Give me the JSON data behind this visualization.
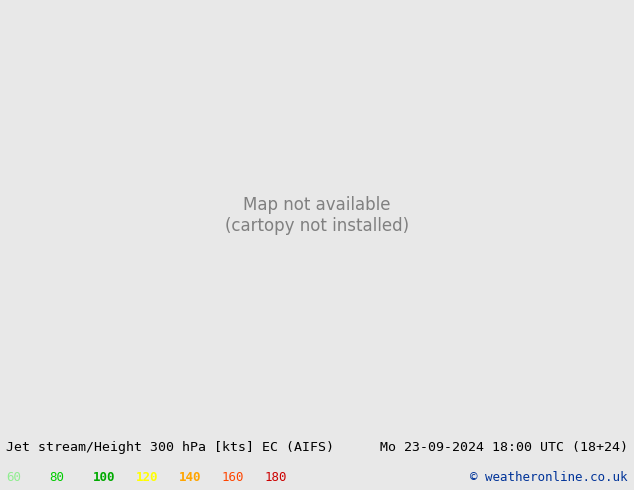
{
  "title_left": "Jet stream/Height 300 hPa [kts] EC (AIFS)",
  "title_right": "Mo 23-09-2024 18:00 UTC (18+24)",
  "copyright": "© weatheronline.co.uk",
  "legend_values": [
    60,
    80,
    100,
    120,
    140,
    160,
    180
  ],
  "legend_colors": [
    "#90ee90",
    "#00cc00",
    "#00aa00",
    "#ffff00",
    "#ffa500",
    "#ff4500",
    "#cc0000"
  ],
  "background_color": "#e8e8e8",
  "map_land_color": "#c8e6c0",
  "map_ocean_color": "#dcdcdc",
  "fig_width": 6.34,
  "fig_height": 4.9,
  "dpi": 100,
  "bottom_bar_color": "#f0f0f0",
  "title_fontsize": 9.5,
  "legend_fontsize": 9,
  "copyright_fontsize": 9
}
